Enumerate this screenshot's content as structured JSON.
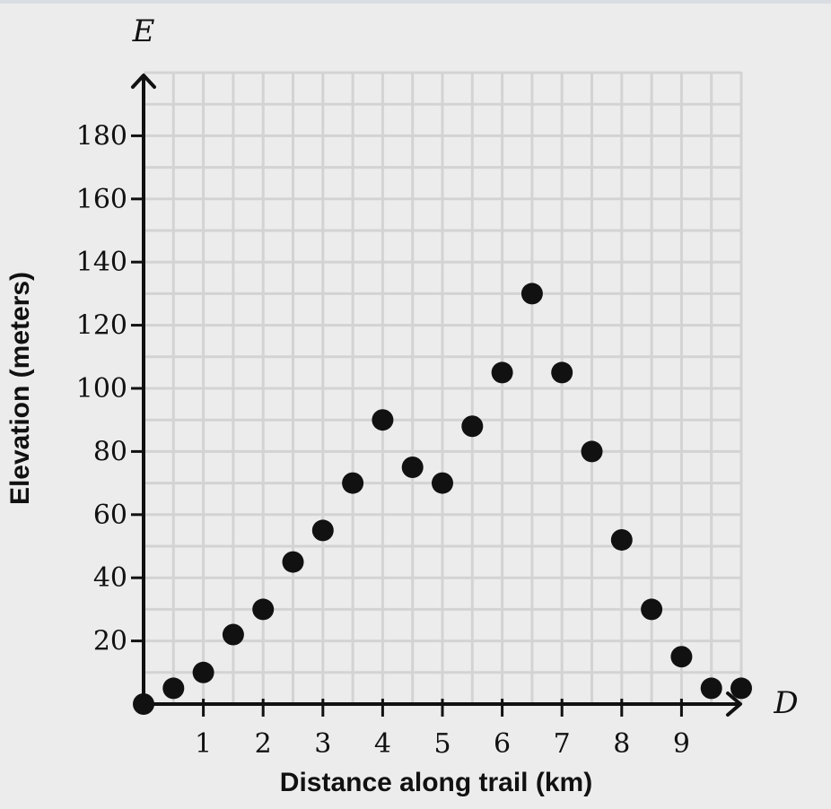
{
  "chart_data": {
    "type": "scatter",
    "title": "",
    "xlabel": "Distance along trail (km)",
    "ylabel": "Elevation (meters)",
    "x_var": "D",
    "y_var": "E",
    "xlim": [
      0,
      10
    ],
    "ylim": [
      0,
      190
    ],
    "x_ticks": [
      1,
      2,
      3,
      4,
      5,
      6,
      7,
      8,
      9
    ],
    "y_ticks": [
      20,
      40,
      60,
      80,
      100,
      120,
      140,
      160,
      180
    ],
    "grid": true,
    "minor_grid": true,
    "point_color": "#111111",
    "series": [
      {
        "x": [
          0,
          0.5,
          1,
          1.5,
          2,
          2.5,
          3,
          3.5,
          4,
          4.5,
          5,
          5.5,
          6,
          6.5,
          7,
          7.5,
          8,
          8.5,
          9,
          9.5,
          10
        ],
        "y": [
          0,
          5,
          10,
          22,
          30,
          45,
          55,
          70,
          90,
          75,
          70,
          88,
          105,
          130,
          105,
          80,
          52,
          30,
          15,
          5,
          5
        ]
      }
    ]
  }
}
